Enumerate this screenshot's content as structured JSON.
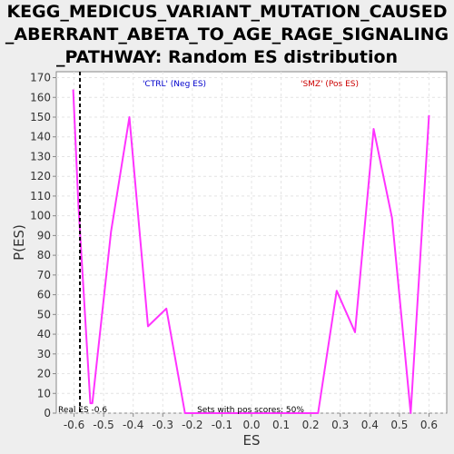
{
  "chart_data": {
    "type": "line",
    "title_lines": [
      "KEGG_MEDICUS_VARIANT_MUTATION_CAUSED",
      "_ABERRANT_ABETA_TO_AGE_RAGE_SIGNALING",
      "_PATHWAY: Random ES distribution"
    ],
    "xlabel": "ES",
    "ylabel": "P(ES)",
    "xlim": [
      -0.66,
      0.66
    ],
    "ylim": [
      0,
      173
    ],
    "x_ticks": [
      -0.6,
      -0.5,
      -0.4,
      -0.3,
      -0.2,
      -0.1,
      0.0,
      0.1,
      0.2,
      0.3,
      0.4,
      0.5,
      0.6
    ],
    "x_tick_labels": [
      "-0.6",
      "-0.5",
      "-0.4",
      "-0.3",
      "-0.2",
      "-0.1",
      "0.0",
      "0.1",
      "0.2",
      "0.3",
      "0.4",
      "0.5",
      "0.6"
    ],
    "y_ticks": [
      0,
      10,
      20,
      30,
      40,
      50,
      60,
      70,
      80,
      90,
      100,
      110,
      120,
      130,
      140,
      150,
      160,
      170
    ],
    "grid": true,
    "series": [
      {
        "color": "#ff33ff",
        "x": [
          -0.603,
          -0.585,
          -0.545,
          -0.538,
          -0.475,
          -0.413,
          -0.35,
          -0.288,
          -0.225,
          -0.163,
          -0.1,
          -0.038,
          0.025,
          0.088,
          0.15,
          0.213,
          0.225,
          0.288,
          0.35,
          0.413,
          0.475,
          0.538,
          0.6
        ],
        "y": [
          164,
          105,
          5,
          5,
          92,
          150,
          44,
          53,
          0,
          0,
          0,
          0,
          0,
          0,
          0,
          0,
          0,
          62,
          41,
          144,
          99,
          0,
          151
        ]
      }
    ],
    "real_es": -0.58,
    "annotations": {
      "neg_label": "'CTRL' (Neg ES)",
      "pos_label": "'SMZ' (Pos ES)",
      "real_es_label": "Real ES -0.6",
      "pos_sets_label": "Sets with pos scores: 50%"
    },
    "colors": {
      "neg_label": "#0000cc",
      "pos_label": "#cc0000",
      "line": "#ff33ff"
    }
  }
}
